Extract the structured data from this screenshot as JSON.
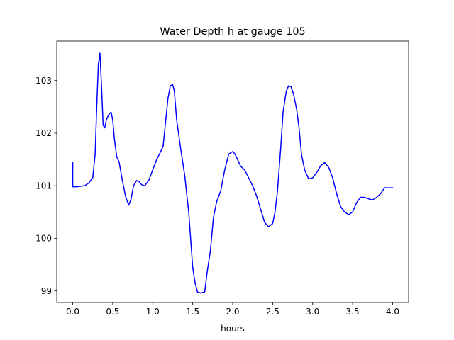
{
  "chart_data": {
    "type": "line",
    "title": "Water Depth h at gauge 105",
    "xlabel": "hours",
    "ylabel": "",
    "xlim": [
      -0.2,
      4.2
    ],
    "ylim": [
      98.78,
      103.75
    ],
    "xticks": [
      0.0,
      0.5,
      1.0,
      1.5,
      2.0,
      2.5,
      3.0,
      3.5,
      4.0
    ],
    "xtick_labels": [
      "0.0",
      "0.5",
      "1.0",
      "1.5",
      "2.0",
      "2.5",
      "3.0",
      "3.5",
      "4.0"
    ],
    "yticks": [
      99,
      100,
      101,
      102,
      103
    ],
    "ytick_labels": [
      "99",
      "100",
      "101",
      "102",
      "103"
    ],
    "grid": false,
    "legend": "none",
    "series": [
      {
        "color": "#0000ff",
        "x": [
          0.0,
          0.0,
          0.05,
          0.1,
          0.15,
          0.2,
          0.25,
          0.28,
          0.3,
          0.32,
          0.34,
          0.36,
          0.38,
          0.4,
          0.42,
          0.45,
          0.48,
          0.5,
          0.52,
          0.55,
          0.58,
          0.62,
          0.66,
          0.7,
          0.73,
          0.76,
          0.8,
          0.83,
          0.86,
          0.9,
          0.95,
          1.0,
          1.05,
          1.1,
          1.13,
          1.16,
          1.19,
          1.22,
          1.25,
          1.27,
          1.3,
          1.35,
          1.4,
          1.45,
          1.5,
          1.53,
          1.56,
          1.6,
          1.65,
          1.68,
          1.72,
          1.76,
          1.8,
          1.85,
          1.9,
          1.95,
          2.0,
          2.03,
          2.06,
          2.1,
          2.15,
          2.2,
          2.25,
          2.3,
          2.35,
          2.4,
          2.45,
          2.5,
          2.53,
          2.56,
          2.6,
          2.63,
          2.67,
          2.7,
          2.73,
          2.76,
          2.8,
          2.83,
          2.86,
          2.9,
          2.95,
          3.0,
          3.05,
          3.1,
          3.15,
          3.2,
          3.25,
          3.3,
          3.35,
          3.4,
          3.45,
          3.5,
          3.55,
          3.6,
          3.65,
          3.7,
          3.75,
          3.8,
          3.85,
          3.9,
          3.95,
          4.0
        ],
        "y": [
          101.45,
          100.98,
          100.98,
          100.99,
          101.0,
          101.05,
          101.15,
          101.6,
          102.5,
          103.3,
          103.52,
          102.9,
          102.15,
          102.1,
          102.25,
          102.35,
          102.4,
          102.25,
          101.9,
          101.55,
          101.45,
          101.1,
          100.8,
          100.63,
          100.75,
          101.0,
          101.1,
          101.08,
          101.02,
          101.0,
          101.1,
          101.3,
          101.5,
          101.65,
          101.75,
          102.2,
          102.65,
          102.9,
          102.92,
          102.8,
          102.25,
          101.7,
          101.2,
          100.5,
          99.45,
          99.15,
          98.98,
          98.96,
          98.98,
          99.35,
          99.75,
          100.4,
          100.7,
          100.9,
          101.3,
          101.6,
          101.65,
          101.6,
          101.5,
          101.37,
          101.3,
          101.15,
          101.0,
          100.8,
          100.55,
          100.3,
          100.22,
          100.28,
          100.5,
          100.9,
          101.7,
          102.4,
          102.8,
          102.9,
          102.88,
          102.75,
          102.45,
          102.1,
          101.6,
          101.3,
          101.13,
          101.15,
          101.25,
          101.38,
          101.44,
          101.35,
          101.15,
          100.85,
          100.6,
          100.5,
          100.45,
          100.5,
          100.68,
          100.78,
          100.78,
          100.75,
          100.73,
          100.78,
          100.85,
          100.96,
          100.96,
          100.96
        ]
      }
    ]
  }
}
